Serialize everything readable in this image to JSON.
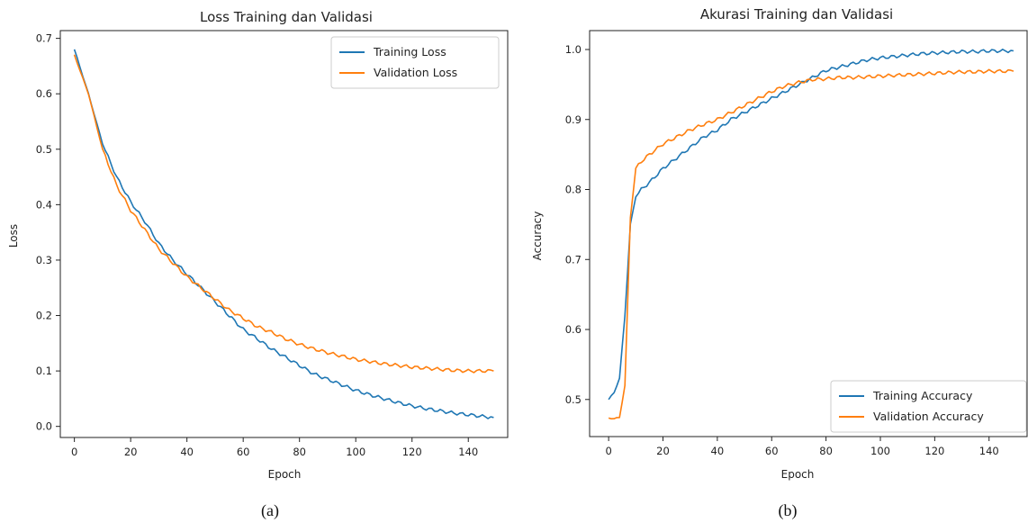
{
  "chart_data": [
    {
      "type": "line",
      "panel_caption": "(a)",
      "title": "Loss Training dan Validasi",
      "xlabel": "Epoch",
      "ylabel": "Loss",
      "xlim": [
        -5,
        154
      ],
      "ylim": [
        -0.02,
        0.714
      ],
      "xticks": [
        0,
        20,
        40,
        60,
        80,
        100,
        120,
        140
      ],
      "yticks": [
        0.0,
        0.1,
        0.2,
        0.3,
        0.4,
        0.5,
        0.6,
        0.7
      ],
      "grid": false,
      "legend": "top-right",
      "x": [
        0,
        5,
        10,
        15,
        20,
        25,
        30,
        35,
        40,
        45,
        50,
        55,
        60,
        65,
        70,
        75,
        80,
        85,
        90,
        95,
        100,
        105,
        110,
        115,
        120,
        125,
        130,
        135,
        140,
        145,
        149
      ],
      "series": [
        {
          "name": "Training Loss",
          "color": "#1f77b4",
          "values": [
            0.68,
            0.6,
            0.51,
            0.45,
            0.405,
            0.37,
            0.33,
            0.3,
            0.275,
            0.25,
            0.225,
            0.2,
            0.175,
            0.158,
            0.14,
            0.125,
            0.11,
            0.095,
            0.085,
            0.075,
            0.065,
            0.057,
            0.05,
            0.043,
            0.037,
            0.032,
            0.028,
            0.024,
            0.021,
            0.018,
            0.016
          ]
        },
        {
          "name": "Validation Loss",
          "color": "#ff7f0e",
          "values": [
            0.67,
            0.6,
            0.5,
            0.435,
            0.39,
            0.355,
            0.32,
            0.295,
            0.27,
            0.25,
            0.23,
            0.21,
            0.195,
            0.18,
            0.17,
            0.158,
            0.148,
            0.14,
            0.133,
            0.127,
            0.121,
            0.117,
            0.113,
            0.11,
            0.107,
            0.105,
            0.103,
            0.101,
            0.1,
            0.1,
            0.1
          ]
        }
      ]
    },
    {
      "type": "line",
      "panel_caption": "(b)",
      "title": "Akurasi Training dan Validasi",
      "xlabel": "Epoch",
      "ylabel": "Accuracy",
      "xlim": [
        -7,
        154
      ],
      "ylim": [
        0.447,
        1.027
      ],
      "xticks": [
        0,
        20,
        40,
        60,
        80,
        100,
        120,
        140
      ],
      "yticks": [
        0.5,
        0.6,
        0.7,
        0.8,
        0.9,
        1.0
      ],
      "grid": false,
      "legend": "lower-right",
      "x": [
        0,
        2,
        4,
        6,
        8,
        10,
        12,
        15,
        20,
        25,
        30,
        35,
        40,
        45,
        50,
        55,
        60,
        65,
        70,
        75,
        80,
        85,
        90,
        95,
        100,
        105,
        110,
        115,
        120,
        125,
        130,
        135,
        140,
        145,
        149
      ],
      "series": [
        {
          "name": "Training Accuracy",
          "color": "#1f77b4",
          "values": [
            0.5,
            0.51,
            0.53,
            0.62,
            0.75,
            0.79,
            0.8,
            0.81,
            0.83,
            0.845,
            0.86,
            0.875,
            0.885,
            0.9,
            0.91,
            0.92,
            0.93,
            0.94,
            0.95,
            0.96,
            0.97,
            0.975,
            0.98,
            0.985,
            0.988,
            0.99,
            0.992,
            0.994,
            0.995,
            0.996,
            0.997,
            0.997,
            0.998,
            0.998,
            0.998
          ]
        },
        {
          "name": "Validation Accuracy",
          "color": "#ff7f0e",
          "values": [
            0.473,
            0.473,
            0.474,
            0.52,
            0.76,
            0.83,
            0.84,
            0.85,
            0.865,
            0.875,
            0.885,
            0.893,
            0.9,
            0.91,
            0.92,
            0.93,
            0.94,
            0.948,
            0.953,
            0.957,
            0.958,
            0.96,
            0.96,
            0.961,
            0.962,
            0.963,
            0.964,
            0.965,
            0.966,
            0.967,
            0.968,
            0.968,
            0.969,
            0.969,
            0.969
          ]
        }
      ]
    }
  ]
}
